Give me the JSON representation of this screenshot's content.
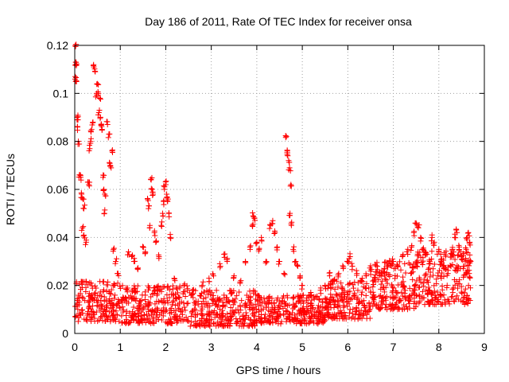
{
  "chart_data": {
    "type": "scatter",
    "title": "Day 186 of 2011, Rate Of TEC Index for receiver onsa",
    "xlabel": "GPS time / hours",
    "ylabel": "ROTI / TECUs",
    "xlim": [
      0,
      9
    ],
    "ylim": [
      0,
      0.12
    ],
    "x_ticks": [
      0,
      1,
      2,
      3,
      4,
      5,
      6,
      7,
      8,
      9
    ],
    "x_tick_labels": [
      "0",
      "1",
      "2",
      "3",
      "4",
      "5",
      "6",
      "7",
      "8",
      "9"
    ],
    "y_ticks": [
      0,
      0.02,
      0.04,
      0.06,
      0.08,
      0.1,
      0.12
    ],
    "y_tick_labels": [
      "0",
      "0.02",
      "0.04",
      "0.06",
      "0.08",
      "0.1",
      "0.12"
    ],
    "grid": true,
    "marker": "+",
    "color": "#ff0000",
    "series": [
      {
        "name": "onsa",
        "note": "Dense cloud of ~2000 points 0-8.7 h; base level ~0.005-0.02, representative outliers listed",
        "base_level_segments": [
          {
            "x_start": 0.0,
            "x_end": 1.0,
            "y_low": 0.005,
            "y_high": 0.022
          },
          {
            "x_start": 1.0,
            "x_end": 2.5,
            "y_low": 0.004,
            "y_high": 0.02
          },
          {
            "x_start": 2.5,
            "x_end": 4.0,
            "y_low": 0.003,
            "y_high": 0.018
          },
          {
            "x_start": 4.0,
            "x_end": 5.5,
            "y_low": 0.004,
            "y_high": 0.016
          },
          {
            "x_start": 5.5,
            "x_end": 6.5,
            "y_low": 0.006,
            "y_high": 0.022
          },
          {
            "x_start": 6.5,
            "x_end": 7.5,
            "y_low": 0.01,
            "y_high": 0.03
          },
          {
            "x_start": 7.5,
            "x_end": 8.7,
            "y_low": 0.012,
            "y_high": 0.035
          }
        ],
        "points": [
          [
            0.01,
            0.12
          ],
          [
            0.02,
            0.113
          ],
          [
            0.03,
            0.112
          ],
          [
            0.01,
            0.107
          ],
          [
            0.02,
            0.105
          ],
          [
            0.05,
            0.09
          ],
          [
            0.07,
            0.089
          ],
          [
            0.06,
            0.086
          ],
          [
            0.08,
            0.08
          ],
          [
            0.1,
            0.066
          ],
          [
            0.13,
            0.065
          ],
          [
            0.15,
            0.058
          ],
          [
            0.18,
            0.056
          ],
          [
            0.2,
            0.052
          ],
          [
            0.17,
            0.044
          ],
          [
            0.2,
            0.041
          ],
          [
            0.25,
            0.038
          ],
          [
            0.3,
            0.063
          ],
          [
            0.31,
            0.062
          ],
          [
            0.33,
            0.077
          ],
          [
            0.35,
            0.08
          ],
          [
            0.37,
            0.085
          ],
          [
            0.4,
            0.088
          ],
          [
            0.42,
            0.111
          ],
          [
            0.45,
            0.109
          ],
          [
            0.48,
            0.1
          ],
          [
            0.5,
            0.104
          ],
          [
            0.52,
            0.1
          ],
          [
            0.55,
            0.098
          ],
          [
            0.53,
            0.092
          ],
          [
            0.56,
            0.09
          ],
          [
            0.58,
            0.087
          ],
          [
            0.6,
            0.085
          ],
          [
            0.62,
            0.065
          ],
          [
            0.64,
            0.06
          ],
          [
            0.66,
            0.058
          ],
          [
            0.65,
            0.05
          ],
          [
            0.72,
            0.087
          ],
          [
            0.75,
            0.083
          ],
          [
            0.78,
            0.07
          ],
          [
            0.8,
            0.069
          ],
          [
            0.82,
            0.076
          ],
          [
            0.85,
            0.035
          ],
          [
            0.9,
            0.03
          ],
          [
            0.95,
            0.025
          ],
          [
            1.18,
            0.034
          ],
          [
            1.25,
            0.032
          ],
          [
            1.3,
            0.03
          ],
          [
            1.38,
            0.027
          ],
          [
            1.5,
            0.036
          ],
          [
            1.55,
            0.034
          ],
          [
            1.6,
            0.056
          ],
          [
            1.62,
            0.052
          ],
          [
            1.65,
            0.045
          ],
          [
            1.68,
            0.064
          ],
          [
            1.7,
            0.06
          ],
          [
            1.72,
            0.058
          ],
          [
            1.75,
            0.042
          ],
          [
            1.78,
            0.038
          ],
          [
            1.85,
            0.032
          ],
          [
            1.9,
            0.045
          ],
          [
            1.93,
            0.05
          ],
          [
            1.95,
            0.055
          ],
          [
            1.97,
            0.06
          ],
          [
            2.0,
            0.062
          ],
          [
            2.02,
            0.058
          ],
          [
            2.05,
            0.056
          ],
          [
            2.07,
            0.05
          ],
          [
            2.1,
            0.04
          ],
          [
            2.2,
            0.022
          ],
          [
            2.4,
            0.02
          ],
          [
            2.6,
            0.018
          ],
          [
            2.8,
            0.02
          ],
          [
            2.95,
            0.023
          ],
          [
            3.05,
            0.024
          ],
          [
            3.2,
            0.028
          ],
          [
            3.28,
            0.033
          ],
          [
            3.35,
            0.03
          ],
          [
            3.5,
            0.024
          ],
          [
            3.65,
            0.022
          ],
          [
            3.75,
            0.03
          ],
          [
            3.85,
            0.036
          ],
          [
            3.9,
            0.045
          ],
          [
            3.92,
            0.049
          ],
          [
            3.95,
            0.048
          ],
          [
            4.0,
            0.038
          ],
          [
            4.05,
            0.035
          ],
          [
            4.1,
            0.04
          ],
          [
            4.2,
            0.03
          ],
          [
            4.3,
            0.045
          ],
          [
            4.35,
            0.047
          ],
          [
            4.4,
            0.042
          ],
          [
            4.45,
            0.036
          ],
          [
            4.5,
            0.03
          ],
          [
            4.6,
            0.025
          ],
          [
            4.65,
            0.082
          ],
          [
            4.67,
            0.076
          ],
          [
            4.68,
            0.074
          ],
          [
            4.7,
            0.072
          ],
          [
            4.72,
            0.069
          ],
          [
            4.75,
            0.062
          ],
          [
            4.73,
            0.05
          ],
          [
            4.76,
            0.045
          ],
          [
            4.8,
            0.035
          ],
          [
            4.85,
            0.03
          ],
          [
            4.9,
            0.028
          ],
          [
            4.95,
            0.024
          ],
          [
            5.0,
            0.02
          ],
          [
            5.2,
            0.016
          ],
          [
            5.4,
            0.018
          ],
          [
            5.5,
            0.02
          ],
          [
            5.6,
            0.024
          ],
          [
            5.7,
            0.022
          ],
          [
            5.8,
            0.025
          ],
          [
            5.9,
            0.027
          ],
          [
            6.0,
            0.03
          ],
          [
            6.05,
            0.032
          ],
          [
            6.1,
            0.028
          ],
          [
            6.2,
            0.025
          ],
          [
            6.3,
            0.022
          ],
          [
            6.4,
            0.024
          ],
          [
            6.5,
            0.026
          ],
          [
            6.6,
            0.023
          ],
          [
            6.7,
            0.025
          ],
          [
            6.8,
            0.027
          ],
          [
            6.9,
            0.029
          ],
          [
            7.0,
            0.03
          ],
          [
            7.1,
            0.028
          ],
          [
            7.2,
            0.032
          ],
          [
            7.3,
            0.034
          ],
          [
            7.4,
            0.036
          ],
          [
            7.45,
            0.042
          ],
          [
            7.5,
            0.046
          ],
          [
            7.55,
            0.044
          ],
          [
            7.6,
            0.04
          ],
          [
            7.65,
            0.035
          ],
          [
            7.7,
            0.033
          ],
          [
            7.8,
            0.03
          ],
          [
            7.85,
            0.04
          ],
          [
            7.9,
            0.038
          ],
          [
            8.0,
            0.035
          ],
          [
            8.05,
            0.03
          ],
          [
            8.1,
            0.028
          ],
          [
            8.2,
            0.025
          ],
          [
            8.3,
            0.035
          ],
          [
            8.35,
            0.04
          ],
          [
            8.4,
            0.042
          ],
          [
            8.45,
            0.036
          ],
          [
            8.5,
            0.032
          ],
          [
            8.55,
            0.028
          ],
          [
            8.6,
            0.035
          ],
          [
            8.62,
            0.04
          ],
          [
            8.65,
            0.042
          ],
          [
            8.68,
            0.038
          ],
          [
            8.7,
            0.03
          ]
        ]
      }
    ]
  }
}
